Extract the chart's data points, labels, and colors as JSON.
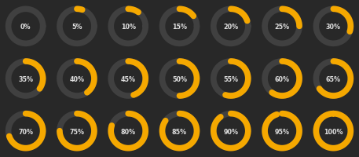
{
  "background_color": "#282828",
  "ring_bg_color": "#404040",
  "ring_fg_color": "#f5a800",
  "text_color": "#e0e0e0",
  "percentages": [
    0,
    5,
    10,
    15,
    20,
    25,
    30,
    35,
    40,
    45,
    50,
    55,
    60,
    65,
    70,
    75,
    80,
    85,
    90,
    95,
    100
  ],
  "cols": 7,
  "rows": 3,
  "ring_linewidth": 5.5,
  "font_size": 5.8,
  "fig_width": 4.57,
  "fig_height": 2.0,
  "dpi": 100
}
